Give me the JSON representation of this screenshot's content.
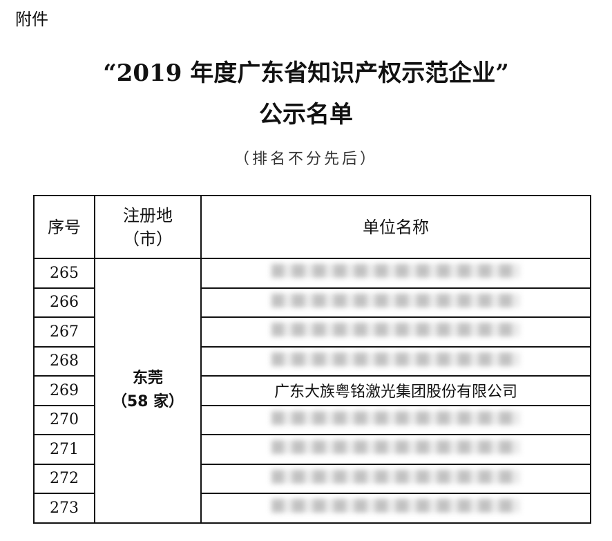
{
  "attachment_label": "附件",
  "title_line1": "“2019 年度广东省知识产权示范企业”",
  "title_line2": "公示名单",
  "subtitle": "（排名不分先后）",
  "table": {
    "headers": {
      "index": "序号",
      "city_line1": "注册地",
      "city_line2": "（市）",
      "company": "单位名称"
    },
    "city": {
      "name": "东莞",
      "count": "（58 家）"
    },
    "rows": [
      {
        "index": "265",
        "company": "",
        "blurred": true
      },
      {
        "index": "266",
        "company": "",
        "blurred": true
      },
      {
        "index": "267",
        "company": "",
        "blurred": true
      },
      {
        "index": "268",
        "company": "",
        "blurred": true
      },
      {
        "index": "269",
        "company": "广东大族粤铭激光集团股份有限公司",
        "blurred": false
      },
      {
        "index": "270",
        "company": "",
        "blurred": true
      },
      {
        "index": "271",
        "company": "",
        "blurred": true
      },
      {
        "index": "272",
        "company": "",
        "blurred": true
      },
      {
        "index": "273",
        "company": "",
        "blurred": true
      }
    ]
  }
}
